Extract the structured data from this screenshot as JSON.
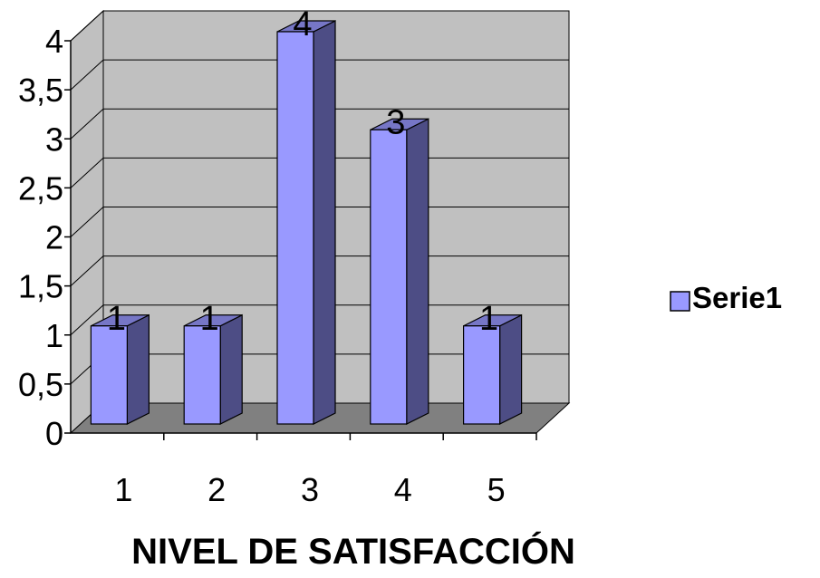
{
  "chart_data": {
    "type": "bar",
    "style": "3d-column",
    "categories": [
      "1",
      "2",
      "3",
      "4",
      "5"
    ],
    "series": [
      {
        "name": "Serie1",
        "values": [
          1,
          1,
          4,
          3,
          1
        ]
      }
    ],
    "data_labels": [
      "1",
      "1",
      "4",
      "3",
      "1"
    ],
    "title": "",
    "xlabel": "NIVEL DE SATISFACCIÓN",
    "ylabel": "",
    "ylim": [
      0,
      4
    ],
    "yticks": [
      "0",
      "0,5",
      "1",
      "1,5",
      "2",
      "2,5",
      "3",
      "3,5",
      "4"
    ],
    "grid": true,
    "legend": "right",
    "colors": {
      "bar_front": "#9999FF",
      "bar_side": "#4D4D85",
      "bar_top": "#7676C6",
      "wall": "#C0C0C0",
      "floor": "#808080",
      "gridline": "#000000"
    }
  }
}
